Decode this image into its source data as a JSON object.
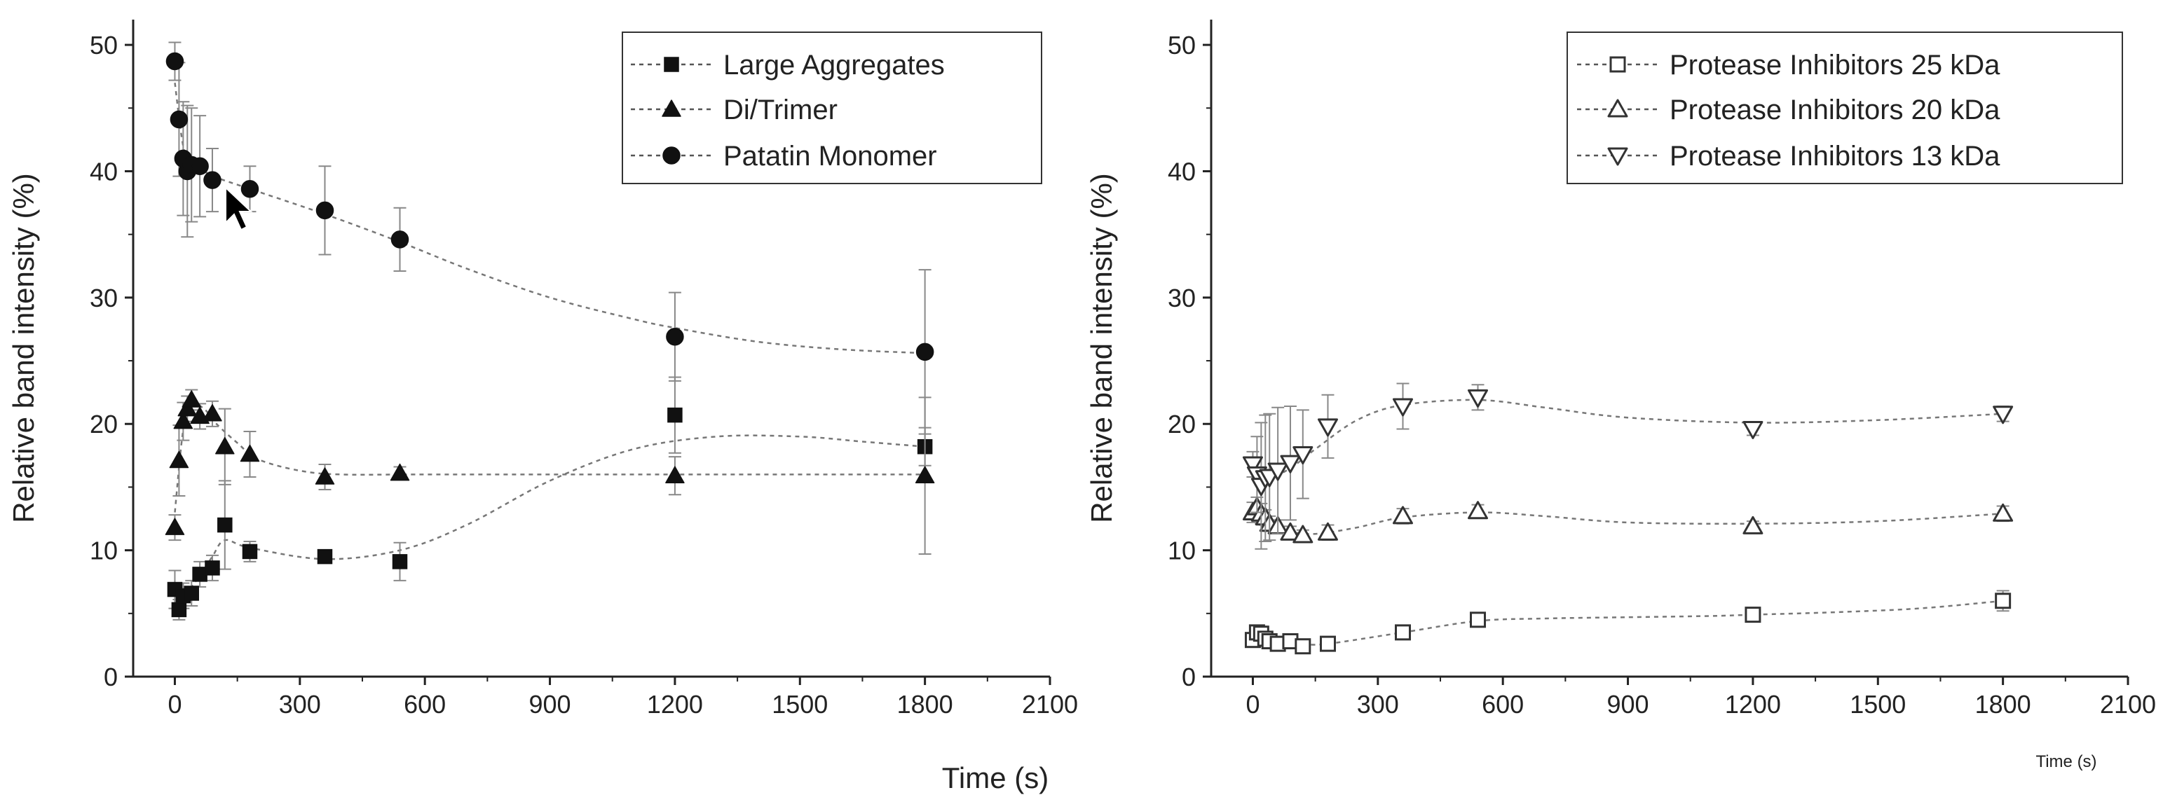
{
  "chart_data": [
    {
      "type": "scatter",
      "xlabel": "Time (s)",
      "ylabel": "Relative band intensity (%)",
      "xlim": [
        -100,
        2100
      ],
      "ylim": [
        0,
        52
      ],
      "xticks": [
        "0",
        "300",
        "600",
        "900",
        "1200",
        "1500",
        "1800",
        "2100"
      ],
      "yticks": [
        "0",
        "10",
        "20",
        "30",
        "40",
        "50"
      ],
      "legend_position": "top-right",
      "series": [
        {
          "name": "Large Aggregates",
          "marker": "square",
          "filled": true,
          "x": [
            0,
            10,
            20,
            40,
            60,
            90,
            120,
            180,
            360,
            540,
            1200,
            1800
          ],
          "y": [
            6.9,
            5.3,
            6.4,
            6.6,
            8.1,
            8.6,
            12.0,
            9.9,
            9.5,
            9.1,
            20.7,
            18.2
          ],
          "err": [
            1.5,
            0.8,
            1.0,
            1.0,
            1.0,
            1.0,
            3.5,
            0.8,
            0.5,
            1.5,
            3.0,
            1.5
          ],
          "fit_x": [
            0,
            30,
            60,
            90,
            120,
            180,
            360,
            540,
            700,
            900,
            1100,
            1300,
            1500,
            1650,
            1800
          ],
          "fit_y": [
            6.5,
            6.8,
            8.0,
            9.5,
            10.8,
            10.2,
            9.3,
            10.0,
            12.0,
            15.5,
            18.0,
            19.0,
            19.0,
            18.6,
            18.2
          ]
        },
        {
          "name": "Di/Trimer",
          "marker": "triangle-up",
          "filled": true,
          "x": [
            0,
            10,
            20,
            30,
            40,
            60,
            90,
            120,
            180,
            360,
            540,
            1200,
            1800
          ],
          "y": [
            11.8,
            17.1,
            20.2,
            21.2,
            21.9,
            20.6,
            20.8,
            18.2,
            17.6,
            15.8,
            16.1,
            15.9,
            15.9
          ],
          "err": [
            1.0,
            2.8,
            1.5,
            1.0,
            0.8,
            1.0,
            1.0,
            3.0,
            1.8,
            1.0,
            0.5,
            1.5,
            6.2
          ],
          "fit_x": [
            0,
            20,
            40,
            70,
            100,
            150,
            200,
            300,
            400,
            600,
            1200,
            1800
          ],
          "fit_y": [
            13.0,
            19.5,
            21.5,
            21.2,
            20.0,
            18.5,
            17.2,
            16.3,
            16.0,
            16.0,
            16.0,
            16.0
          ]
        },
        {
          "name": "Patatin Monomer",
          "marker": "circle",
          "filled": true,
          "x": [
            0,
            10,
            20,
            30,
            40,
            60,
            90,
            180,
            360,
            540,
            1200,
            1800
          ],
          "y": [
            48.7,
            44.1,
            41.0,
            40.0,
            40.5,
            40.4,
            39.3,
            38.6,
            36.9,
            34.6,
            26.9,
            25.7
          ],
          "err": [
            1.5,
            4.5,
            4.5,
            5.2,
            4.5,
            4.0,
            2.5,
            1.8,
            3.5,
            2.5,
            3.5,
            6.5
          ],
          "fit_x": [
            0,
            20,
            40,
            70,
            100,
            180,
            360,
            540,
            700,
            900,
            1100,
            1200,
            1400,
            1600,
            1800
          ],
          "fit_y": [
            47.0,
            42.0,
            40.5,
            40.0,
            39.5,
            38.6,
            36.6,
            34.4,
            32.3,
            30.0,
            28.3,
            27.6,
            26.5,
            25.9,
            25.6
          ]
        }
      ]
    },
    {
      "type": "scatter",
      "xlabel": "Time (s)",
      "ylabel": "Relative band intensity (%)",
      "xlim": [
        -100,
        2100
      ],
      "ylim": [
        0,
        52
      ],
      "xticks": [
        "0",
        "300",
        "600",
        "900",
        "1200",
        "1500",
        "1800",
        "2100"
      ],
      "yticks": [
        "0",
        "10",
        "20",
        "30",
        "40",
        "50"
      ],
      "legend_position": "top-right",
      "series": [
        {
          "name": "Protease Inhibitors 25 kDa",
          "marker": "square",
          "filled": false,
          "x": [
            0,
            10,
            20,
            30,
            40,
            60,
            90,
            120,
            180,
            360,
            540,
            1200,
            1800
          ],
          "y": [
            2.9,
            3.5,
            3.4,
            3.0,
            2.8,
            2.6,
            2.8,
            2.4,
            2.6,
            3.5,
            4.5,
            4.9,
            6.0
          ],
          "err": [
            0.5,
            0.5,
            0.5,
            0.5,
            0.4,
            0.4,
            0.4,
            0.3,
            0.3,
            0.3,
            0.4,
            0.3,
            0.8
          ],
          "fit_x": [
            0,
            30,
            60,
            120,
            180,
            360,
            540,
            700,
            900,
            1100,
            1200,
            1400,
            1600,
            1800
          ],
          "fit_y": [
            3.2,
            3.1,
            2.9,
            2.6,
            2.6,
            3.5,
            4.4,
            4.6,
            4.7,
            4.8,
            4.9,
            5.1,
            5.4,
            6.0
          ]
        },
        {
          "name": "Protease Inhibitors 20 kDa",
          "marker": "triangle-up",
          "filled": false,
          "x": [
            0,
            10,
            20,
            30,
            40,
            60,
            90,
            120,
            180,
            360,
            540,
            1200,
            1800
          ],
          "y": [
            13.0,
            13.4,
            12.9,
            12.6,
            12.1,
            11.9,
            11.4,
            11.2,
            11.4,
            12.7,
            13.1,
            11.9,
            12.9
          ],
          "err": [
            0.8,
            0.8,
            0.8,
            0.6,
            0.6,
            0.5,
            0.5,
            0.4,
            0.6,
            0.6,
            0.5,
            0.4,
            0.6
          ],
          "fit_x": [
            0,
            40,
            90,
            150,
            250,
            360,
            540,
            700,
            900,
            1200,
            1500,
            1800
          ],
          "fit_y": [
            13.3,
            12.3,
            11.5,
            11.3,
            11.8,
            12.6,
            13.0,
            12.7,
            12.2,
            12.1,
            12.3,
            12.9
          ]
        },
        {
          "name": "Protease Inhibitors 13 kDa",
          "marker": "triangle-down",
          "filled": false,
          "x": [
            0,
            10,
            20,
            30,
            40,
            60,
            90,
            120,
            180,
            360,
            540,
            1200,
            1800
          ],
          "y": [
            16.8,
            16.0,
            15.1,
            15.7,
            15.8,
            16.3,
            16.9,
            17.6,
            19.8,
            21.4,
            22.1,
            19.6,
            20.8
          ],
          "err": [
            1.0,
            3.0,
            5.0,
            5.0,
            5.0,
            5.0,
            4.5,
            3.5,
            2.5,
            1.8,
            1.0,
            0.5,
            0.6
          ],
          "fit_x": [
            0,
            40,
            90,
            150,
            250,
            360,
            540,
            700,
            900,
            1200,
            1500,
            1800
          ],
          "fit_y": [
            16.5,
            15.8,
            16.5,
            18.0,
            20.3,
            21.5,
            21.9,
            21.3,
            20.5,
            20.1,
            20.3,
            20.8
          ]
        }
      ]
    }
  ]
}
